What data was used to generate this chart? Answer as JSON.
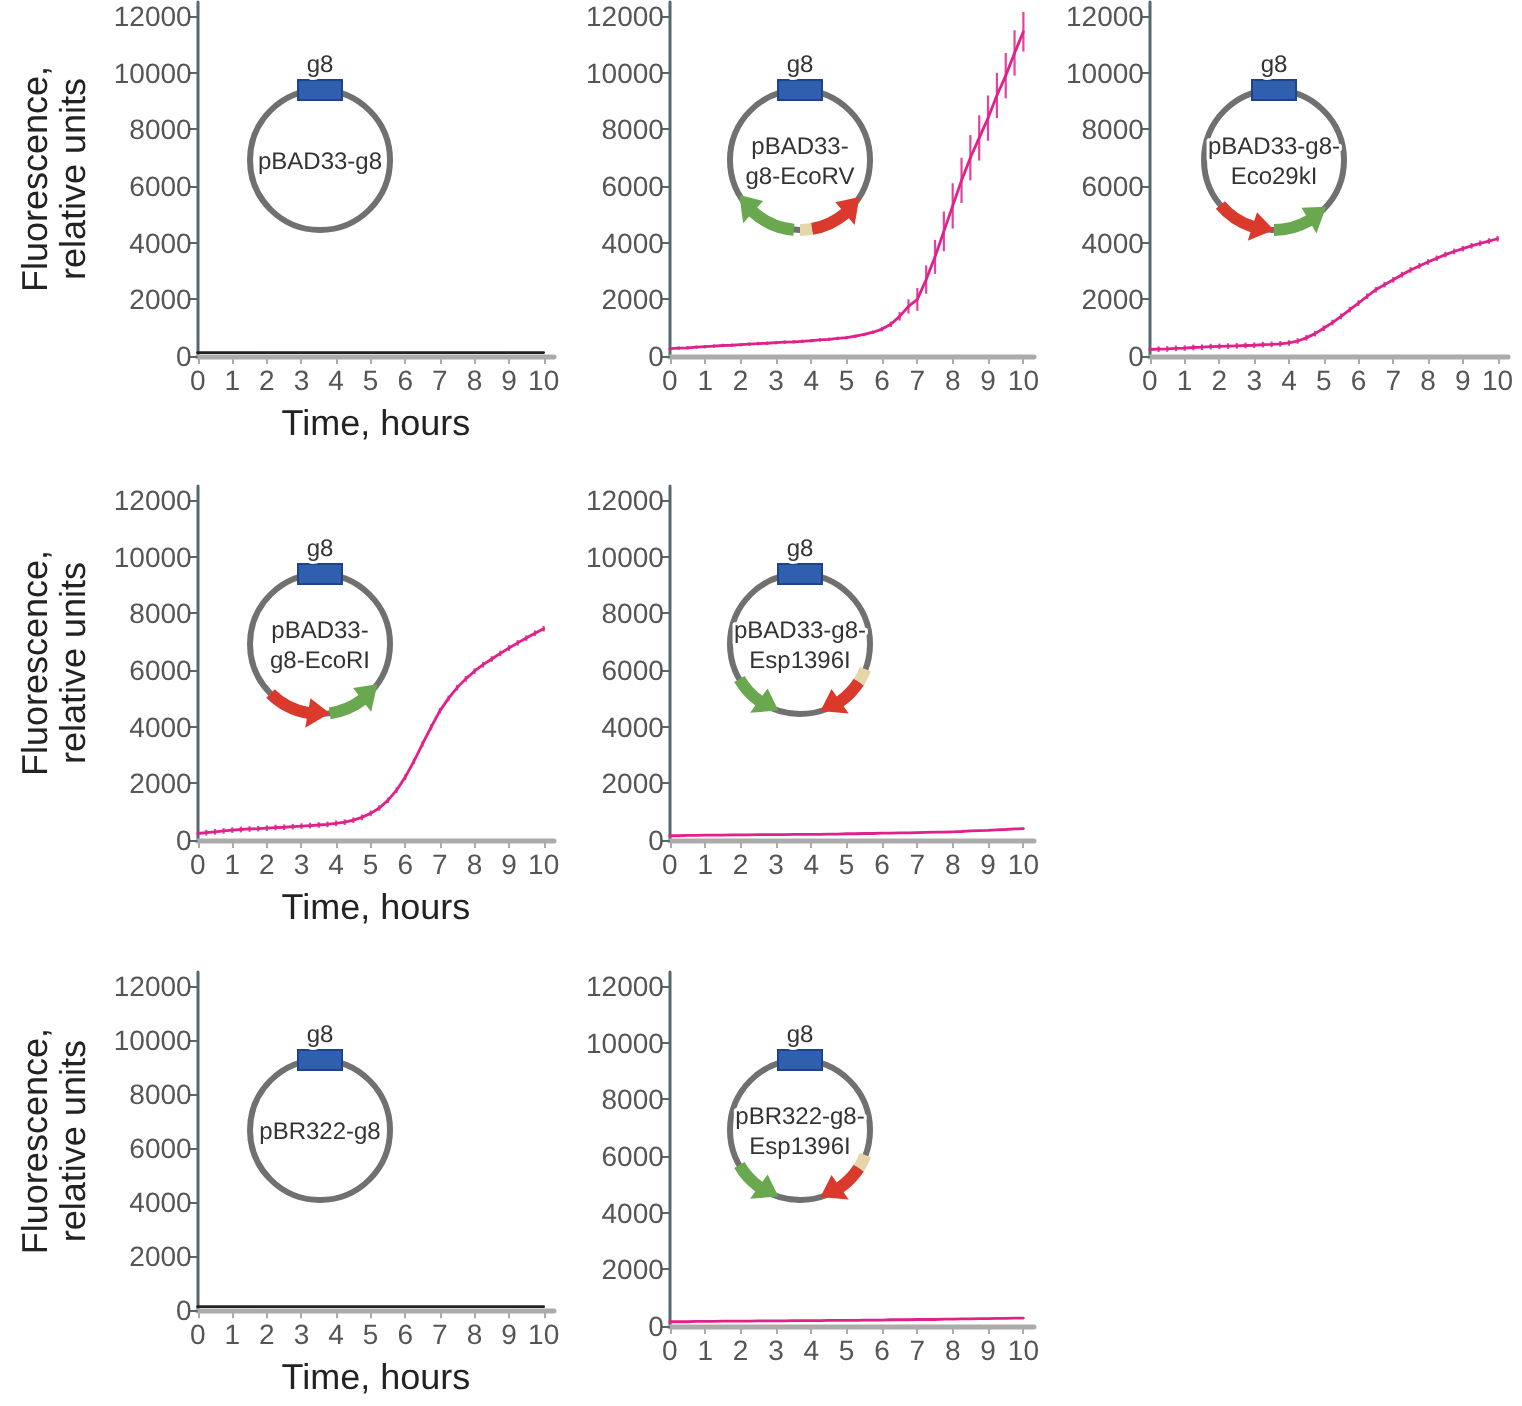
{
  "chart_data": [
    {
      "type": "line",
      "xlabel": "Time, hours",
      "ylabel": "Fluorescence, relative units",
      "annotations": [
        "g8",
        "pBAD33-g8"
      ],
      "x": [
        0,
        0.25,
        0.5,
        0.75,
        1,
        1.25,
        1.5,
        1.75,
        2,
        2.25,
        2.5,
        2.75,
        3,
        3.25,
        3.5,
        3.75,
        4,
        4.25,
        4.5,
        4.75,
        5,
        5.25,
        5.5,
        5.75,
        6,
        6.25,
        6.5,
        6.75,
        7,
        7.25,
        7.5,
        7.75,
        8,
        8.25,
        8.5,
        8.75,
        9,
        9.25,
        9.5,
        9.75,
        10
      ],
      "values": [
        120,
        120,
        120,
        120,
        120,
        120,
        120,
        120,
        120,
        120,
        120,
        120,
        120,
        120,
        120,
        120,
        120,
        120,
        120,
        120,
        120,
        120,
        120,
        120,
        120,
        120,
        120,
        120,
        120,
        120,
        120,
        120,
        120,
        120,
        120,
        120,
        120,
        120,
        120,
        120,
        120
      ],
      "color": "#222222",
      "xlim": [
        0,
        10.3
      ],
      "xticks": [
        0,
        1,
        2,
        3,
        4,
        5,
        6,
        7,
        8,
        9,
        10
      ],
      "ylim": [
        0,
        12500
      ],
      "yticks": [
        0,
        2000,
        4000,
        6000,
        8000,
        10000,
        12000
      ]
    },
    {
      "type": "line",
      "annotations": [
        "g8",
        "pBAD33-g8-EcoRV"
      ],
      "x": [
        0,
        0.25,
        0.5,
        0.75,
        1,
        1.25,
        1.5,
        1.75,
        2,
        2.25,
        2.5,
        2.75,
        3,
        3.25,
        3.5,
        3.75,
        4,
        4.25,
        4.5,
        4.75,
        5,
        5.25,
        5.5,
        5.75,
        6,
        6.25,
        6.5,
        6.75,
        7,
        7.25,
        7.5,
        7.75,
        8,
        8.25,
        8.5,
        8.75,
        9,
        9.25,
        9.5,
        9.75,
        10
      ],
      "values": [
        260,
        280,
        290,
        310,
        330,
        350,
        370,
        380,
        400,
        420,
        440,
        450,
        470,
        490,
        500,
        520,
        540,
        570,
        590,
        620,
        650,
        700,
        760,
        840,
        950,
        1120,
        1400,
        1750,
        2000,
        2700,
        3500,
        4400,
        5300,
        6200,
        7000,
        7700,
        8400,
        9200,
        9900,
        10700,
        11450
      ],
      "errors": [
        null,
        60,
        60,
        60,
        60,
        60,
        60,
        60,
        60,
        60,
        60,
        60,
        60,
        60,
        60,
        60,
        60,
        60,
        60,
        60,
        60,
        60,
        60,
        60,
        80,
        100,
        150,
        250,
        400,
        500,
        600,
        700,
        800,
        800,
        800,
        800,
        800,
        800,
        800,
        800,
        700
      ],
      "color": "#e0218a",
      "xlim": [
        0,
        10.3
      ],
      "xticks": [
        0,
        1,
        2,
        3,
        4,
        5,
        6,
        7,
        8,
        9,
        10
      ],
      "ylim": [
        0,
        12500
      ],
      "yticks": [
        0,
        2000,
        4000,
        6000,
        8000,
        10000,
        12000
      ]
    },
    {
      "type": "line",
      "annotations": [
        "g8",
        "pBAD33-g8-Eco29kI"
      ],
      "x": [
        0,
        0.25,
        0.5,
        0.75,
        1,
        1.25,
        1.5,
        1.75,
        2,
        2.25,
        2.5,
        2.75,
        3,
        3.25,
        3.5,
        3.75,
        4,
        4.25,
        4.5,
        4.75,
        5,
        5.25,
        5.5,
        5.75,
        6,
        6.25,
        6.5,
        6.75,
        7,
        7.25,
        7.5,
        7.75,
        8,
        8.25,
        8.5,
        8.75,
        9,
        9.25,
        9.5,
        9.75,
        10
      ],
      "values": [
        230,
        240,
        250,
        270,
        280,
        300,
        310,
        330,
        340,
        350,
        360,
        370,
        380,
        400,
        410,
        430,
        460,
        530,
        640,
        790,
        980,
        1180,
        1400,
        1640,
        1870,
        2110,
        2340,
        2520,
        2690,
        2870,
        3040,
        3180,
        3320,
        3450,
        3580,
        3690,
        3790,
        3890,
        3980,
        4060,
        4140
      ],
      "errors": [
        null,
        100,
        100,
        100,
        100,
        100,
        100,
        100,
        100,
        100,
        100,
        100,
        100,
        100,
        100,
        100,
        100,
        100,
        100,
        100,
        100,
        100,
        100,
        100,
        100,
        100,
        100,
        100,
        100,
        100,
        100,
        100,
        100,
        100,
        100,
        100,
        100,
        100,
        100,
        100,
        100
      ],
      "color": "#e0218a",
      "xlim": [
        0,
        10.3
      ],
      "xticks": [
        0,
        1,
        2,
        3,
        4,
        5,
        6,
        7,
        8,
        9,
        10
      ],
      "ylim": [
        0,
        12500
      ],
      "yticks": [
        0,
        2000,
        4000,
        6000,
        8000,
        10000,
        12000
      ]
    },
    {
      "type": "line",
      "xlabel": "Time, hours",
      "ylabel": "Fluorescence, relative units",
      "annotations": [
        "g8",
        "pBAD33-g8-EcoRI"
      ],
      "x": [
        0,
        0.25,
        0.5,
        0.75,
        1,
        1.25,
        1.5,
        1.75,
        2,
        2.25,
        2.5,
        2.75,
        3,
        3.25,
        3.5,
        3.75,
        4,
        4.25,
        4.5,
        4.75,
        5,
        5.25,
        5.5,
        5.75,
        6,
        6.25,
        6.5,
        6.75,
        7,
        7.25,
        7.5,
        7.75,
        8,
        8.25,
        8.5,
        8.75,
        9,
        9.25,
        9.5,
        9.75,
        10
      ],
      "values": [
        230,
        260,
        290,
        320,
        350,
        370,
        390,
        400,
        420,
        440,
        450,
        470,
        490,
        510,
        530,
        550,
        590,
        630,
        700,
        800,
        940,
        1130,
        1400,
        1760,
        2220,
        2780,
        3390,
        3990,
        4560,
        5000,
        5380,
        5690,
        5960,
        6190,
        6390,
        6590,
        6780,
        6960,
        7130,
        7300,
        7460
      ],
      "errors": [
        null,
        100,
        100,
        100,
        100,
        100,
        100,
        100,
        100,
        100,
        100,
        100,
        100,
        100,
        100,
        100,
        100,
        100,
        100,
        100,
        100,
        100,
        100,
        100,
        100,
        100,
        100,
        100,
        100,
        100,
        100,
        100,
        100,
        100,
        100,
        100,
        100,
        100,
        100,
        100,
        100
      ],
      "color": "#e0218a",
      "xlim": [
        0,
        10.3
      ],
      "xticks": [
        0,
        1,
        2,
        3,
        4,
        5,
        6,
        7,
        8,
        9,
        10
      ],
      "ylim": [
        0,
        12500
      ],
      "yticks": [
        0,
        2000,
        4000,
        6000,
        8000,
        10000,
        12000
      ]
    },
    {
      "type": "line",
      "annotations": [
        "g8",
        "pBAD33-g8-Esp1396I"
      ],
      "x": [
        0,
        0.25,
        0.5,
        0.75,
        1,
        1.25,
        1.5,
        1.75,
        2,
        2.25,
        2.5,
        2.75,
        3,
        3.25,
        3.5,
        3.75,
        4,
        4.25,
        4.5,
        4.75,
        5,
        5.25,
        5.5,
        5.75,
        6,
        6.25,
        6.5,
        6.75,
        7,
        7.25,
        7.5,
        7.75,
        8,
        8.25,
        8.5,
        8.75,
        9,
        9.25,
        9.5,
        9.75,
        10
      ],
      "values": [
        150,
        150,
        160,
        160,
        170,
        170,
        170,
        180,
        180,
        180,
        190,
        190,
        190,
        190,
        200,
        200,
        200,
        200,
        210,
        210,
        220,
        220,
        230,
        230,
        240,
        240,
        250,
        250,
        260,
        270,
        280,
        280,
        290,
        300,
        320,
        330,
        340,
        360,
        370,
        390,
        400
      ],
      "color": "#e0218a",
      "xlim": [
        0,
        10.3
      ],
      "xticks": [
        0,
        1,
        2,
        3,
        4,
        5,
        6,
        7,
        8,
        9,
        10
      ],
      "ylim": [
        0,
        12500
      ],
      "yticks": [
        0,
        2000,
        4000,
        6000,
        8000,
        10000,
        12000
      ]
    },
    {
      "type": "line",
      "xlabel": "Time, hours",
      "ylabel": "Fluorescence, relative units",
      "annotations": [
        "g8",
        "pBR322-g8"
      ],
      "x": [
        0,
        0.25,
        0.5,
        0.75,
        1,
        1.25,
        1.5,
        1.75,
        2,
        2.25,
        2.5,
        2.75,
        3,
        3.25,
        3.5,
        3.75,
        4,
        4.25,
        4.5,
        4.75,
        5,
        5.25,
        5.5,
        5.75,
        6,
        6.25,
        6.5,
        6.75,
        7,
        7.25,
        7.5,
        7.75,
        8,
        8.25,
        8.5,
        8.75,
        9,
        9.25,
        9.5,
        9.75,
        10
      ],
      "values": [
        130,
        130,
        130,
        130,
        130,
        130,
        130,
        130,
        130,
        130,
        130,
        130,
        130,
        130,
        130,
        130,
        130,
        130,
        130,
        130,
        130,
        130,
        130,
        130,
        130,
        130,
        130,
        130,
        130,
        130,
        130,
        130,
        130,
        130,
        130,
        130,
        130,
        130,
        130,
        130,
        130
      ],
      "color": "#222222",
      "xlim": [
        0,
        10.3
      ],
      "xticks": [
        0,
        1,
        2,
        3,
        4,
        5,
        6,
        7,
        8,
        9,
        10
      ],
      "ylim": [
        0,
        12500
      ],
      "yticks": [
        0,
        2000,
        4000,
        6000,
        8000,
        10000,
        12000
      ]
    },
    {
      "type": "line",
      "annotations": [
        "g8",
        "pBR322-g8-Esp1396I"
      ],
      "x": [
        0,
        0.25,
        0.5,
        0.75,
        1,
        1.25,
        1.5,
        1.75,
        2,
        2.25,
        2.5,
        2.75,
        3,
        3.25,
        3.5,
        3.75,
        4,
        4.25,
        4.5,
        4.75,
        5,
        5.25,
        5.5,
        5.75,
        6,
        6.25,
        6.5,
        6.75,
        7,
        7.25,
        7.5,
        7.75,
        8,
        8.25,
        8.5,
        8.75,
        9,
        9.25,
        9.5,
        9.75,
        10
      ],
      "values": [
        150,
        150,
        150,
        160,
        160,
        160,
        170,
        170,
        170,
        170,
        180,
        180,
        180,
        180,
        190,
        190,
        190,
        190,
        200,
        200,
        200,
        200,
        210,
        210,
        210,
        220,
        220,
        220,
        230,
        230,
        230,
        240,
        240,
        250,
        250,
        260,
        260,
        270,
        270,
        280,
        280
      ],
      "color": "#e0218a",
      "xlim": [
        0,
        10.3
      ],
      "xticks": [
        0,
        1,
        2,
        3,
        4,
        5,
        6,
        7,
        8,
        9,
        10
      ],
      "ylim": [
        0,
        12500
      ],
      "yticks": [
        0,
        2000,
        4000,
        6000,
        8000,
        10000,
        12000
      ]
    }
  ]
}
